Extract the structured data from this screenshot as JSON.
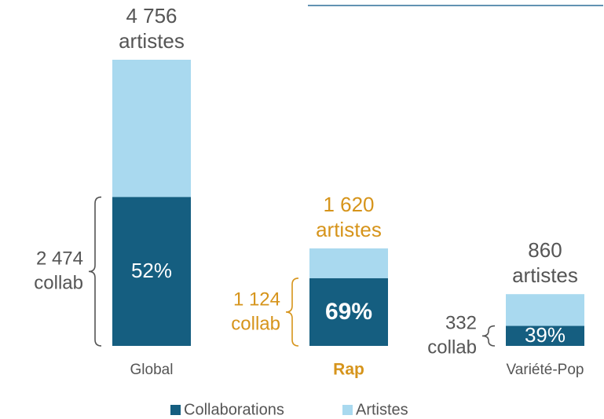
{
  "chart_data": {
    "type": "bar",
    "categories": [
      "Global",
      "Rap",
      "Variété-Pop"
    ],
    "series": [
      {
        "name": "Artistes",
        "color": "#a9d9ef",
        "values": [
          4756,
          1620,
          860
        ],
        "value_labels": [
          "4 756",
          "1 620",
          "860"
        ],
        "unit": "artistes"
      },
      {
        "name": "Collaborations",
        "color": "#155e80",
        "values": [
          2474,
          1124,
          332
        ],
        "value_labels": [
          "2 474",
          "1 124",
          "332"
        ],
        "unit": "collab"
      }
    ],
    "shares": {
      "values": [
        52,
        69,
        39
      ],
      "value_labels": [
        "52%",
        "69%",
        "39%"
      ]
    },
    "highlight": "Rap",
    "highlight_color": "#d6941b"
  }
}
